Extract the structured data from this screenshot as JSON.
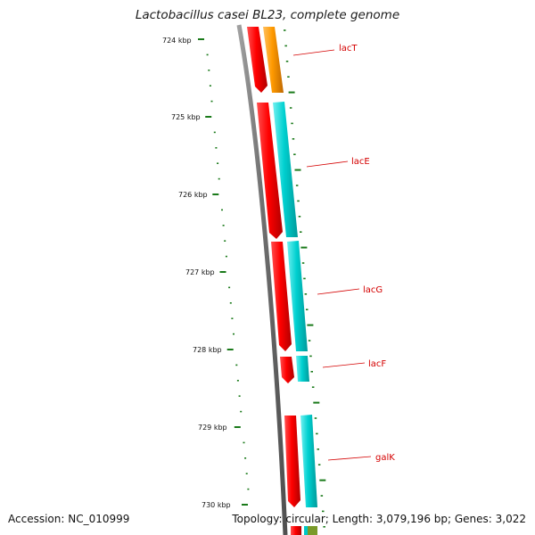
{
  "title": "Lactobacillus casei BL23, complete genome",
  "footer": {
    "accession": "Accession: NC_010999",
    "stats": "Topology: circular; Length: 3,079,196 bp; Genes: 3,022"
  },
  "ruler": {
    "labels": [
      "724 kbp",
      "725 kbp",
      "726 kbp",
      "727 kbp",
      "728 kbp",
      "729 kbp",
      "730 kbp"
    ]
  },
  "genes": [
    {
      "name": "lacT"
    },
    {
      "name": "lacE"
    },
    {
      "name": "lacG"
    },
    {
      "name": "lacF"
    },
    {
      "name": "galK"
    }
  ],
  "colors": {
    "backbone": "#7a7a7a",
    "forward_cds": "#ff0000",
    "reverse_gene": "#00c8c8",
    "lacT_gene": "#ff9a00",
    "ticks": "#1a7a1a",
    "gene_label": "#d40000",
    "olive": "#6b8e23"
  }
}
